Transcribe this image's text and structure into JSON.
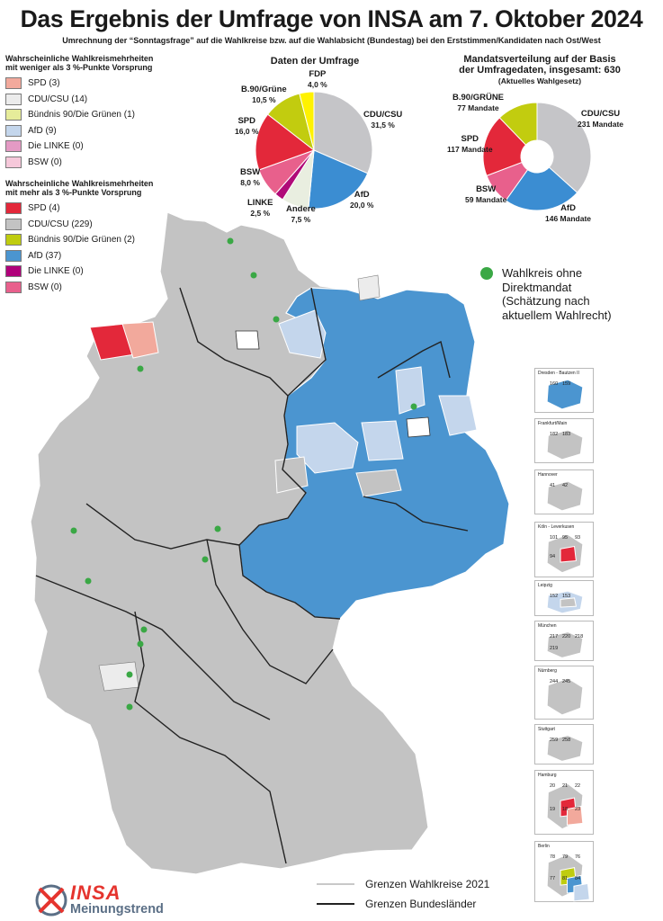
{
  "header": {
    "title": "Das Ergebnis der Umfrage von INSA am 7. Oktober 2024",
    "subtitle": "Umrechnung der “Sonntagsfrage” auf die Wahlkreise bzw. auf die Wahlabsicht (Bundestag) bei den Erststimmen/Kandidaten nach Ost/West"
  },
  "legend_small": {
    "heading_line1": "Wahrscheinliche Wahlkreismehrheiten",
    "heading_line2": "mit weniger als 3 %-Punkte Vorsprung",
    "items": [
      {
        "label": "SPD (3)",
        "color": "#f2a99c"
      },
      {
        "label": "CDU/CSU (14)",
        "color": "#ececec"
      },
      {
        "label": "Bündnis 90/Die Grünen (1)",
        "color": "#e6ec9a"
      },
      {
        "label": "AfD (9)",
        "color": "#c4d6ec"
      },
      {
        "label": "Die LINKE (0)",
        "color": "#e49ac4"
      },
      {
        "label": "BSW (0)",
        "color": "#f6c8da"
      }
    ]
  },
  "legend_large": {
    "heading_line1": "Wahrscheinliche Wahlkreismehrheiten",
    "heading_line2": "mit mehr als 3 %-Punkte Vorsprung",
    "items": [
      {
        "label": "SPD (4)",
        "color": "#e3283a"
      },
      {
        "label": "CDU/CSU (229)",
        "color": "#c3c3c3"
      },
      {
        "label": "Bündnis 90/Die Grünen (2)",
        "color": "#bfcc0f"
      },
      {
        "label": "AfD (37)",
        "color": "#4b95d0"
      },
      {
        "label": "Die LINKE (0)",
        "color": "#b0007a"
      },
      {
        "label": "BSW (0)",
        "color": "#e8608c"
      }
    ]
  },
  "chart_data": [
    {
      "type": "pie",
      "title": "Daten der Umfrage",
      "slices": [
        {
          "name": "CDU/CSU",
          "value": 31.5,
          "label": "31,5 %",
          "color": "#c5c5c8"
        },
        {
          "name": "AfD",
          "value": 20.0,
          "label": "20,0 %",
          "color": "#3b8dd2"
        },
        {
          "name": "Andere",
          "value": 7.5,
          "label": "7,5 %",
          "color": "#e9eee0"
        },
        {
          "name": "LINKE",
          "value": 2.5,
          "label": "2,5 %",
          "color": "#b00a78"
        },
        {
          "name": "BSW",
          "value": 8.0,
          "label": "8,0 %",
          "color": "#e8608c"
        },
        {
          "name": "SPD",
          "value": 16.0,
          "label": "16,0 %",
          "color": "#e3283a"
        },
        {
          "name": "B.90/Grüne",
          "value": 10.5,
          "label": "10,5 %",
          "color": "#c2cc0f"
        },
        {
          "name": "FDP",
          "value": 4.0,
          "label": "4,0 %",
          "color": "#fff200"
        }
      ]
    },
    {
      "type": "pie",
      "title": "Mandatsverteilung auf der Basis der Umfragedaten, insgesamt: 630",
      "title_line1": "Mandatsverteilung auf der Basis",
      "title_line2": "der Umfragedaten, insgesamt: 630",
      "note": "(Aktuelles Wahlgesetz)",
      "slices": [
        {
          "name": "CDU/CSU",
          "value": 231,
          "label": "231 Mandate",
          "color": "#c5c5c8"
        },
        {
          "name": "AfD",
          "value": 146,
          "label": "146 Mandate",
          "color": "#3b8dd2"
        },
        {
          "name": "BSW",
          "value": 59,
          "label": "59 Mandate",
          "color": "#e8608c"
        },
        {
          "name": "SPD",
          "value": 117,
          "label": "117 Mandate",
          "color": "#e3283a"
        },
        {
          "name": "B.90/GRÜNE",
          "value": 77,
          "label": "77 Mandate",
          "color": "#c2cc0f"
        }
      ]
    }
  ],
  "map_note": {
    "line1": "Wahlkreis ohne",
    "line2": "Direktmandat",
    "line3": "(Schätzung nach",
    "line4": "aktuellem Wahlrecht)"
  },
  "insets": [
    {
      "title": "Dresden - Bautzen II",
      "numbers": [
        "160",
        "159"
      ]
    },
    {
      "title": "Frankfurt/Main",
      "numbers": [
        "182",
        "183"
      ]
    },
    {
      "title": "Hannover",
      "numbers": [
        "41",
        "42"
      ]
    },
    {
      "title": "Köln - Leverkusen",
      "numbers": [
        "101",
        "95",
        "93",
        "94"
      ]
    },
    {
      "title": "Leipzig",
      "numbers": [
        "152",
        "153"
      ]
    },
    {
      "title": "München",
      "numbers": [
        "217",
        "220",
        "218",
        "219"
      ]
    },
    {
      "title": "Nürnberg",
      "numbers": [
        "244",
        "245"
      ]
    },
    {
      "title": "Stuttgart",
      "numbers": [
        "259",
        "258"
      ]
    },
    {
      "title": "Hamburg",
      "numbers": [
        "20",
        "21",
        "22",
        "19",
        "18",
        "23"
      ]
    },
    {
      "title": "Berlin",
      "numbers": [
        "78",
        "79",
        "76",
        "77",
        "81",
        "84"
      ]
    }
  ],
  "bottom_legend": {
    "wahlkreise": "Grenzen Wahlkreise 2021",
    "bundeslaender": "Grenzen Bundesländer"
  },
  "logo": {
    "brand": "INSA",
    "tagline": "Meinungstrend",
    "brand_color": "#e5342e",
    "tagline_color": "#5b6f86"
  }
}
